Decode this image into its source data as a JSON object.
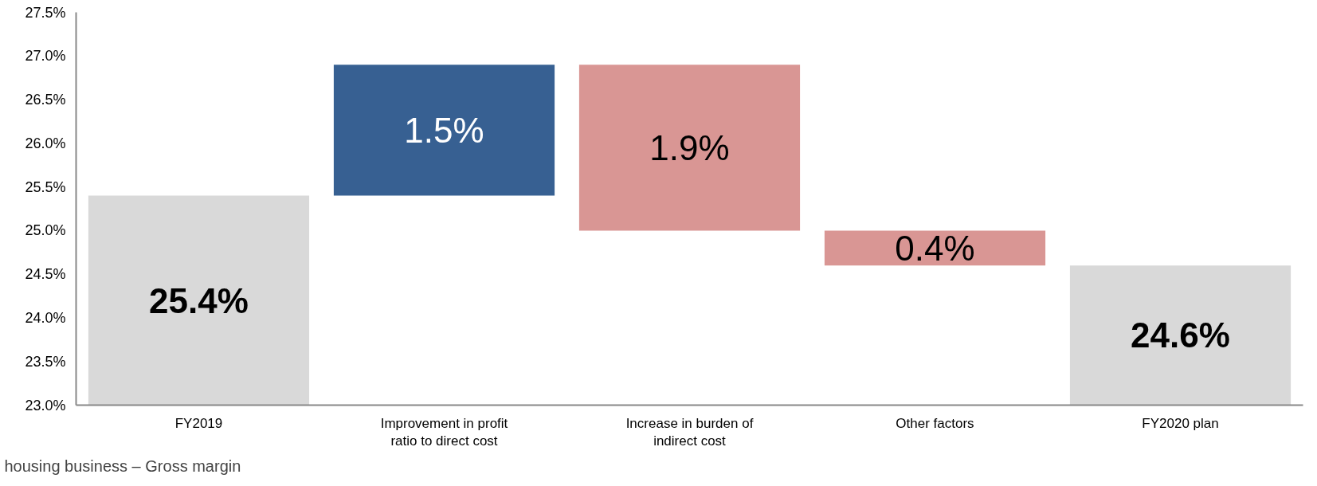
{
  "chart_data": {
    "type": "bar",
    "categories": [
      "FY2019",
      "Improvement in profit ratio to direct cost",
      "Increase in burden of indirect cost",
      "Other factors",
      "FY2020 plan"
    ],
    "values": [
      25.4,
      1.5,
      -1.9,
      -0.4,
      24.6
    ],
    "base": [
      null,
      25.4,
      26.9,
      25.0,
      null
    ],
    "colors": [
      "#d9d9d9",
      "#376092",
      "#d99694",
      "#d99694",
      "#d9d9d9"
    ],
    "value_labels": [
      "25.4%",
      "1.5%",
      "1.9%",
      "0.4%",
      "24.6%"
    ],
    "ylim": [
      23.0,
      27.5
    ],
    "yticks": [
      {
        "value": 23.0,
        "label": "23.0%"
      },
      {
        "value": 23.5,
        "label": "23.5%"
      },
      {
        "value": 24.0,
        "label": "24.0%"
      },
      {
        "value": 24.5,
        "label": "24.5%"
      },
      {
        "value": 25.0,
        "label": "25.0%"
      },
      {
        "value": 25.5,
        "label": "25.5%"
      },
      {
        "value": 26.0,
        "label": "26.0%"
      },
      {
        "value": 26.5,
        "label": "26.5%"
      },
      {
        "value": 27.0,
        "label": "27.0%"
      },
      {
        "value": 27.5,
        "label": "27.5%"
      }
    ],
    "grid": false,
    "annotations": [
      "housing business – Gross margin"
    ]
  }
}
